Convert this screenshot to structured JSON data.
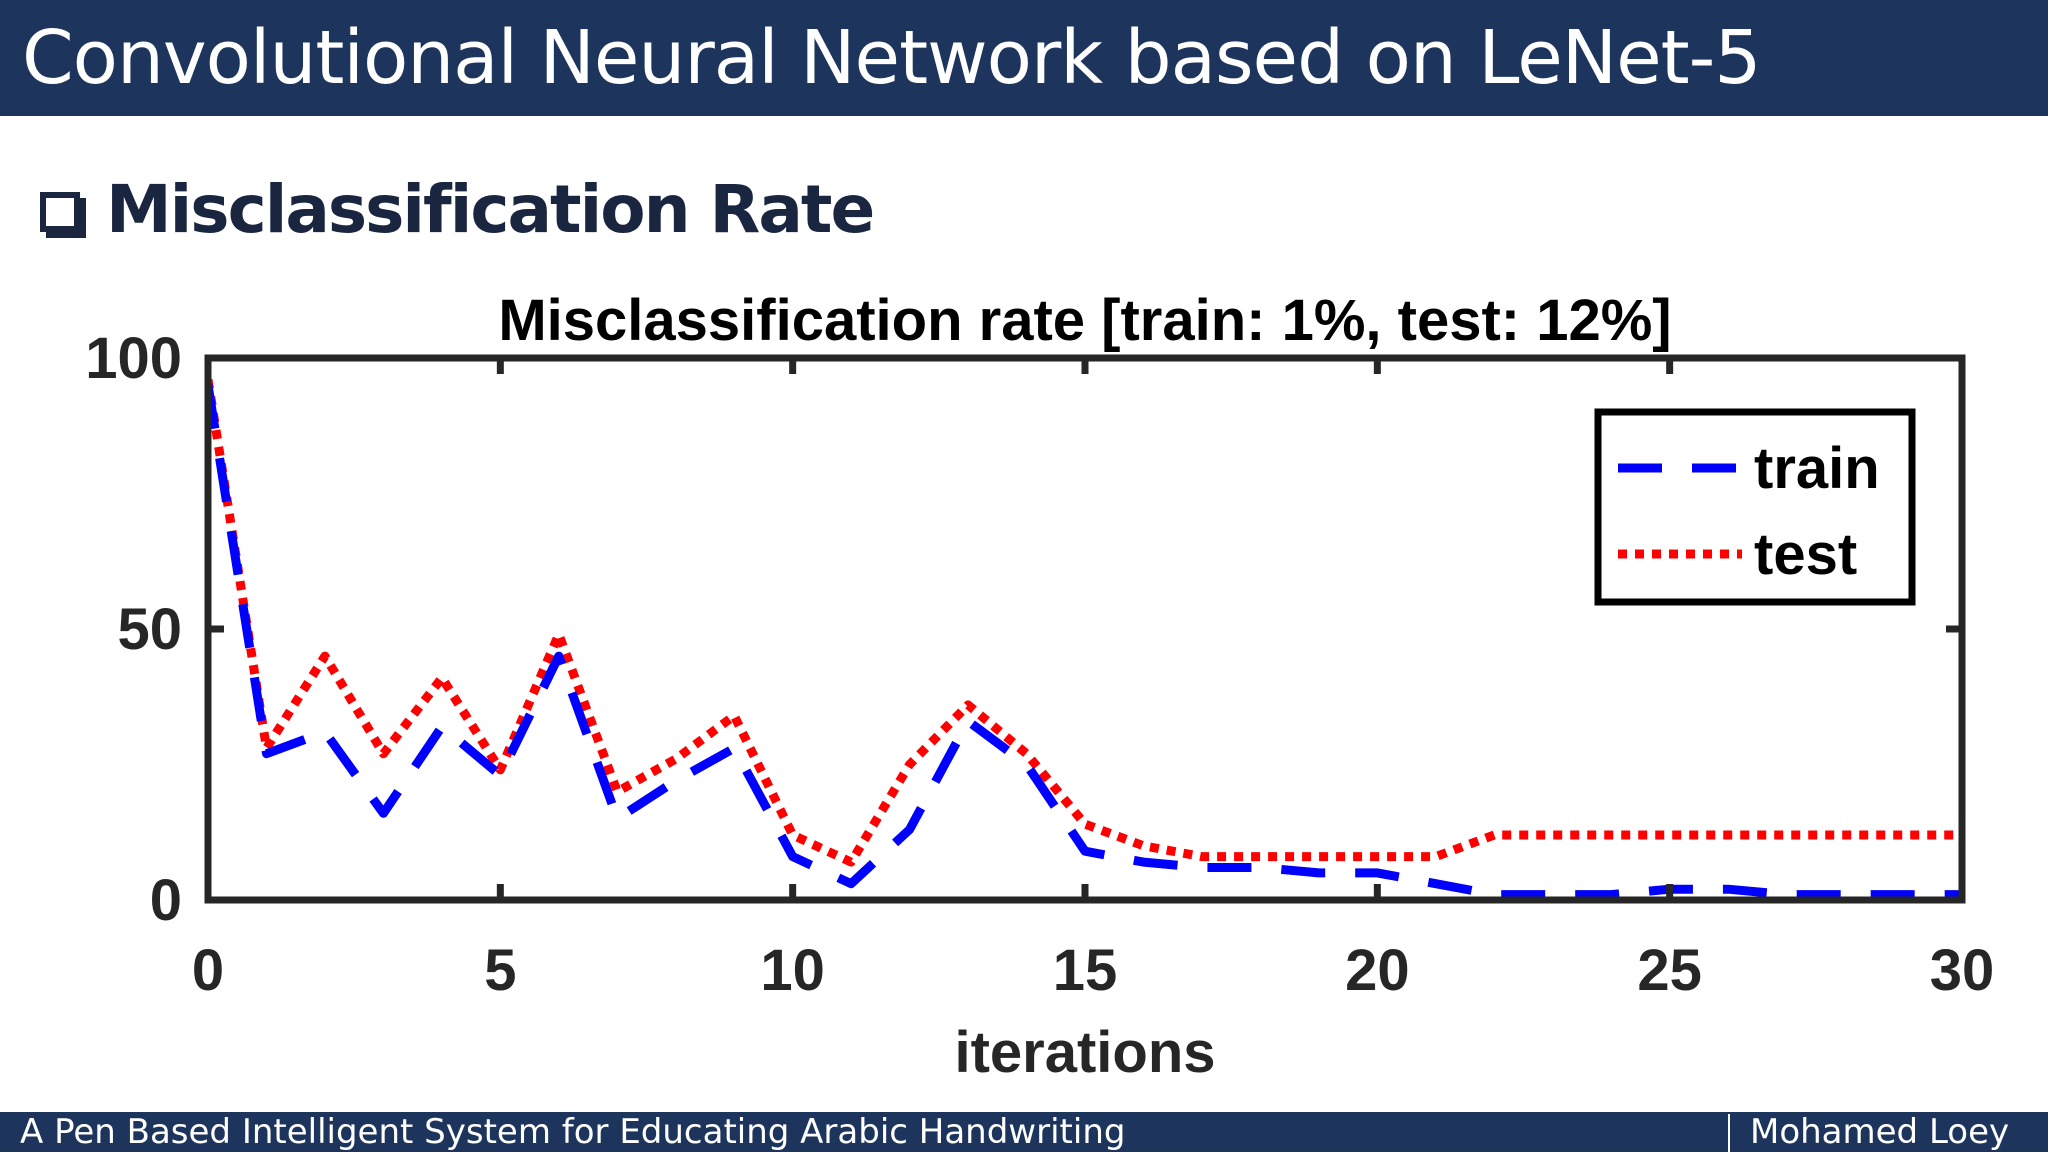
{
  "slide": {
    "title": "Convolutional Neural Network based on LeNet-5",
    "section_heading": "Misclassification Rate"
  },
  "footer": {
    "left_text": "A Pen Based Intelligent System for Educating Arabic Handwriting",
    "right_text": "Mohamed Loey"
  },
  "colors": {
    "bar": "#1d355c",
    "train": "#0000ff",
    "test": "#ff0000",
    "axis": "#262626"
  },
  "chart_data": {
    "type": "line",
    "title": "Misclassification rate [train: 1%, test: 12%]",
    "xlabel": "iterations",
    "ylabel": "",
    "xlim": [
      0,
      30
    ],
    "ylim": [
      0,
      100
    ],
    "xticks": [
      0,
      5,
      10,
      15,
      20,
      25,
      30
    ],
    "yticks": [
      0,
      50,
      100
    ],
    "legend": {
      "position": "top-right"
    },
    "x": [
      0,
      1,
      2,
      3,
      4,
      5,
      6,
      7,
      8,
      9,
      10,
      11,
      12,
      13,
      14,
      15,
      16,
      17,
      18,
      19,
      20,
      21,
      22,
      23,
      24,
      25,
      26,
      27,
      28,
      29,
      30
    ],
    "series": [
      {
        "name": "train",
        "style": "dashed",
        "color": "#0000ff",
        "values": [
          95,
          27,
          31,
          16,
          32,
          23,
          45,
          15,
          22,
          28,
          8,
          3,
          13,
          33,
          25,
          9,
          7,
          6,
          6,
          5,
          5,
          3,
          1,
          1,
          1,
          2,
          2,
          1,
          1,
          1,
          1
        ]
      },
      {
        "name": "test",
        "style": "dotted",
        "color": "#ff0000",
        "values": [
          96,
          28,
          45,
          27,
          41,
          24,
          49,
          20,
          26,
          34,
          12,
          7,
          25,
          36,
          27,
          14,
          10,
          8,
          8,
          8,
          8,
          8,
          12,
          12,
          12,
          12,
          12,
          12,
          12,
          12,
          12
        ]
      }
    ]
  }
}
